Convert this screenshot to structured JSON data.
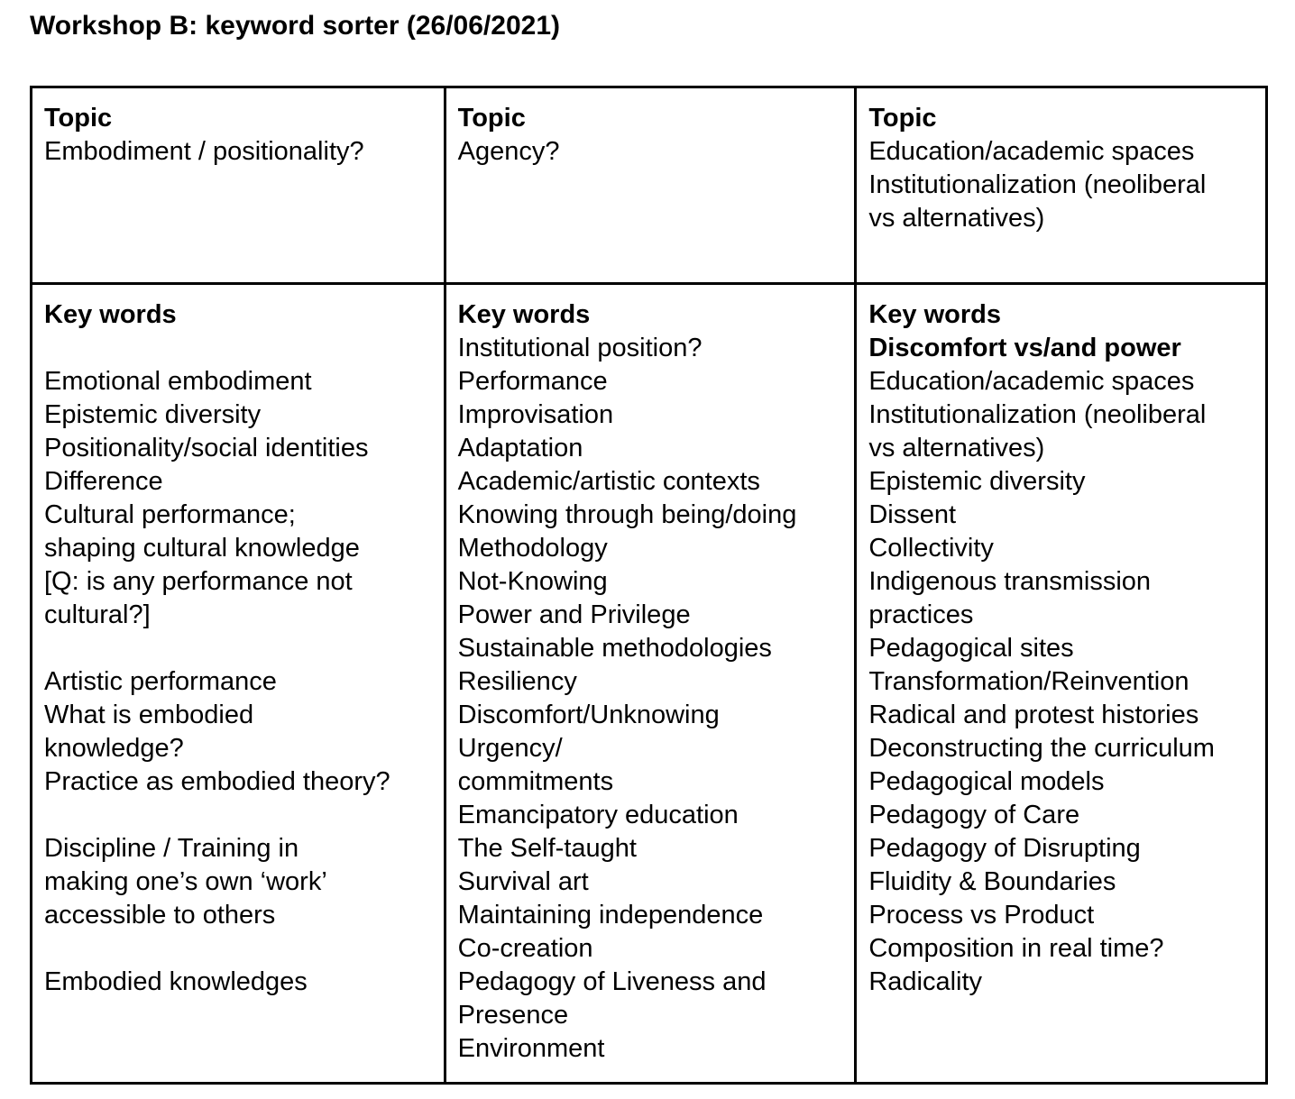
{
  "page": {
    "title": "Workshop B: keyword sorter (26/06/2021)"
  },
  "table": {
    "columns": [
      {
        "topic_label": "Topic",
        "topic_lines": [
          {
            "text": "Embodiment / positionality?",
            "bold": false
          }
        ],
        "keywords_label": "Key words",
        "keyword_lines": [
          {
            "text": "",
            "bold": false
          },
          {
            "text": "Emotional embodiment",
            "bold": false
          },
          {
            "text": "Epistemic diversity",
            "bold": false
          },
          {
            "text": "Positionality/social identities",
            "bold": false
          },
          {
            "text": "Difference",
            "bold": false
          },
          {
            "text": "Cultural performance;",
            "bold": false
          },
          {
            "text": "shaping cultural knowledge",
            "bold": false
          },
          {
            "text": "[Q: is any performance not",
            "bold": false
          },
          {
            "text": "cultural?]",
            "bold": false
          },
          {
            "text": "",
            "bold": false
          },
          {
            "text": "Artistic performance",
            "bold": false
          },
          {
            "text": "What is embodied",
            "bold": false
          },
          {
            "text": "knowledge?",
            "bold": false
          },
          {
            "text": "Practice as embodied theory?",
            "bold": false
          },
          {
            "text": "",
            "bold": false
          },
          {
            "text": "Discipline / Training in",
            "bold": false
          },
          {
            "text": "making one’s own ‘work’",
            "bold": false
          },
          {
            "text": "accessible to others",
            "bold": false
          },
          {
            "text": "",
            "bold": false
          },
          {
            "text": "Embodied knowledges",
            "bold": false
          }
        ]
      },
      {
        "topic_label": "Topic",
        "topic_lines": [
          {
            "text": "Agency?",
            "bold": false
          }
        ],
        "keywords_label": "Key words",
        "keyword_lines": [
          {
            "text": "Institutional position?",
            "bold": false
          },
          {
            "text": "Performance",
            "bold": false
          },
          {
            "text": "Improvisation",
            "bold": false
          },
          {
            "text": "Adaptation",
            "bold": false
          },
          {
            "text": "Academic/artistic contexts",
            "bold": false
          },
          {
            "text": "Knowing through being/doing",
            "bold": false
          },
          {
            "text": "Methodology",
            "bold": false
          },
          {
            "text": "Not-Knowing",
            "bold": false
          },
          {
            "text": "Power and Privilege",
            "bold": false
          },
          {
            "text": "Sustainable methodologies",
            "bold": false
          },
          {
            "text": "Resiliency",
            "bold": false
          },
          {
            "text": "Discomfort/Unknowing",
            "bold": false
          },
          {
            "text": "Urgency/",
            "bold": false
          },
          {
            "text": "commitments",
            "bold": false
          },
          {
            "text": "Emancipatory education",
            "bold": false
          },
          {
            "text": "The Self-taught",
            "bold": false
          },
          {
            "text": "Survival art",
            "bold": false
          },
          {
            "text": "Maintaining independence",
            "bold": false
          },
          {
            "text": "Co-creation",
            "bold": false
          },
          {
            "text": "Pedagogy of Liveness and",
            "bold": false
          },
          {
            "text": "Presence",
            "bold": false
          },
          {
            "text": "Environment",
            "bold": false
          }
        ]
      },
      {
        "topic_label": "Topic",
        "topic_lines": [
          {
            "text": "Education/academic spaces",
            "bold": false
          },
          {
            "text": "Institutionalization (neoliberal",
            "bold": false
          },
          {
            "text": "vs alternatives)",
            "bold": false
          }
        ],
        "keywords_label": "Key words",
        "keyword_lines": [
          {
            "text": "Discomfort vs/and power",
            "bold": true
          },
          {
            "text": "Education/academic spaces",
            "bold": false
          },
          {
            "text": "Institutionalization (neoliberal",
            "bold": false
          },
          {
            "text": "vs alternatives)",
            "bold": false
          },
          {
            "text": "Epistemic diversity",
            "bold": false
          },
          {
            "text": "Dissent",
            "bold": false
          },
          {
            "text": "Collectivity",
            "bold": false
          },
          {
            "text": "Indigenous transmission",
            "bold": false
          },
          {
            "text": "practices",
            "bold": false
          },
          {
            "text": "Pedagogical sites",
            "bold": false
          },
          {
            "text": "Transformation/Reinvention",
            "bold": false
          },
          {
            "text": "Radical and protest histories",
            "bold": false
          },
          {
            "text": "Deconstructing the curriculum",
            "bold": false
          },
          {
            "text": "Pedagogical models",
            "bold": false
          },
          {
            "text": "Pedagogy of Care",
            "bold": false
          },
          {
            "text": "Pedagogy of Disrupting",
            "bold": false
          },
          {
            "text": "Fluidity & Boundaries",
            "bold": false
          },
          {
            "text": "Process vs Product",
            "bold": false
          },
          {
            "text": "Composition in real time?",
            "bold": false
          },
          {
            "text": "Radicality",
            "bold": false
          }
        ]
      }
    ]
  }
}
